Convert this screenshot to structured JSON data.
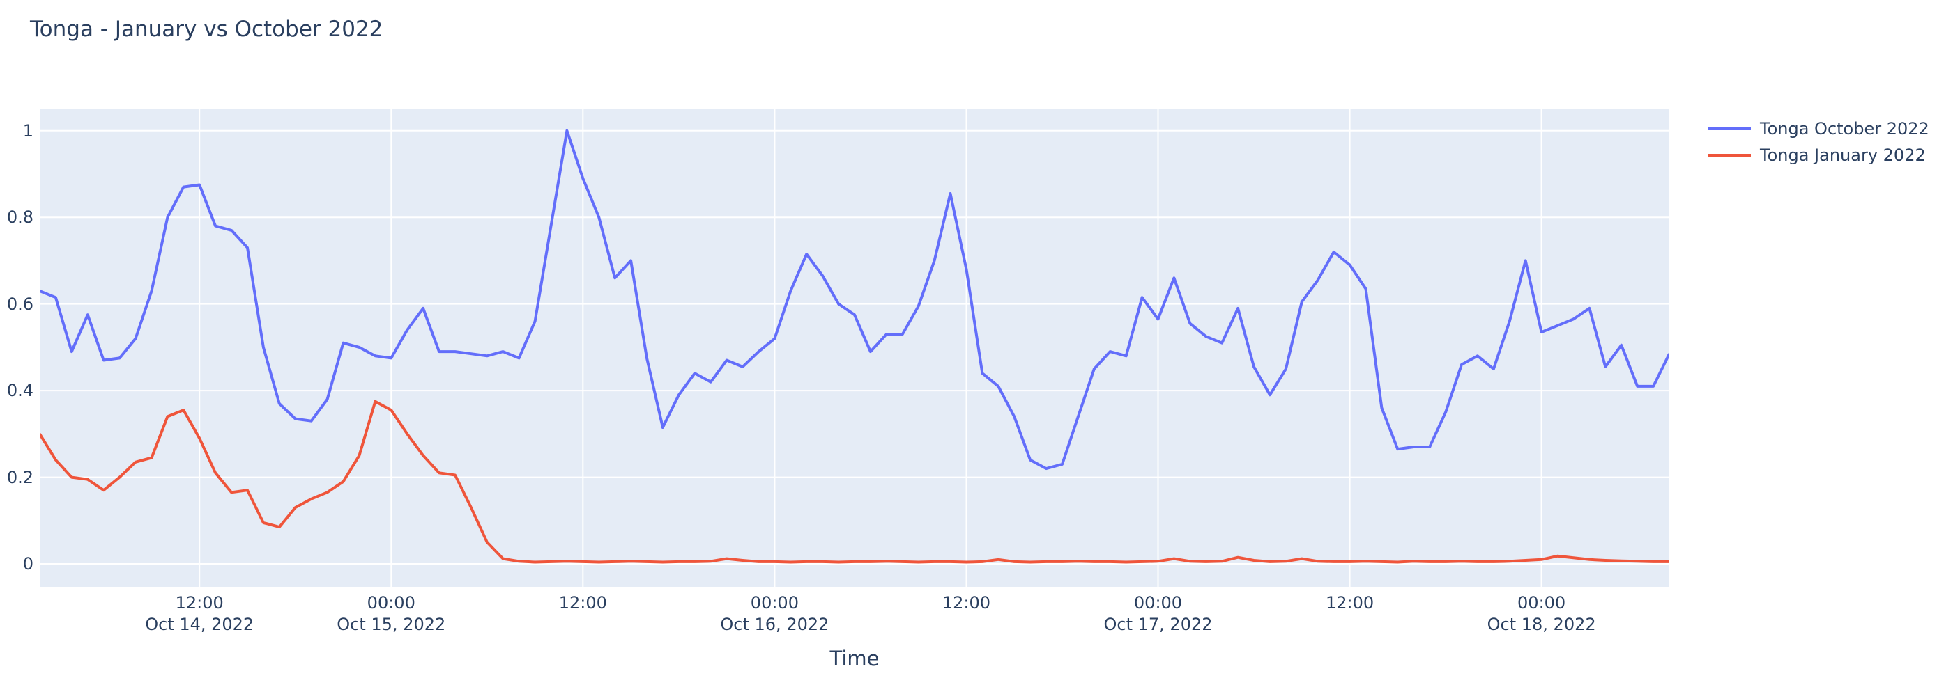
{
  "title": "Tonga - January vs October 2022",
  "xaxis_title": "Time",
  "colors": {
    "text": "#2a3f5f",
    "page_background": "#ffffff",
    "plot_background": "#e5ecf6",
    "gridline": "#ffffff",
    "series_october": "#636efa",
    "series_january": "#ef553b"
  },
  "chart_data": {
    "type": "line",
    "title": "Tonga - January vs October 2022",
    "xlabel": "Time",
    "ylabel": "",
    "grid": true,
    "legend_position": "right-top-outside",
    "x_unit": "hours since 2022-10-14 00:00",
    "x_start_hour": 2,
    "x_step_hours": 1,
    "n_points": 103,
    "x_range": [
      2,
      104
    ],
    "y_range": [
      -0.053,
      1.051
    ],
    "x_ticks": [
      {
        "t": 12,
        "line1": "12:00",
        "line2": "Oct 14, 2022"
      },
      {
        "t": 24,
        "line1": "00:00",
        "line2": "Oct 15, 2022"
      },
      {
        "t": 36,
        "line1": "12:00",
        "line2": ""
      },
      {
        "t": 48,
        "line1": "00:00",
        "line2": "Oct 16, 2022"
      },
      {
        "t": 60,
        "line1": "12:00",
        "line2": ""
      },
      {
        "t": 72,
        "line1": "00:00",
        "line2": "Oct 17, 2022"
      },
      {
        "t": 84,
        "line1": "12:00",
        "line2": ""
      },
      {
        "t": 96,
        "line1": "00:00",
        "line2": "Oct 18, 2022"
      }
    ],
    "y_ticks": [
      {
        "v": 0.0,
        "label": "0"
      },
      {
        "v": 0.2,
        "label": "0.2"
      },
      {
        "v": 0.4,
        "label": "0.4"
      },
      {
        "v": 0.6,
        "label": "0.6"
      },
      {
        "v": 0.8,
        "label": "0.8"
      },
      {
        "v": 1.0,
        "label": "1"
      }
    ],
    "series": [
      {
        "name": "Tonga October 2022",
        "slug": "tonga-october-2022",
        "color": "#636efa",
        "values": [
          0.63,
          0.615,
          0.49,
          0.575,
          0.47,
          0.475,
          0.52,
          0.63,
          0.8,
          0.87,
          0.875,
          0.78,
          0.77,
          0.73,
          0.5,
          0.37,
          0.335,
          0.33,
          0.38,
          0.51,
          0.5,
          0.48,
          0.475,
          0.54,
          0.59,
          0.49,
          0.49,
          0.485,
          0.48,
          0.49,
          0.475,
          0.56,
          0.78,
          1.0,
          0.89,
          0.8,
          0.66,
          0.7,
          0.475,
          0.315,
          0.39,
          0.44,
          0.42,
          0.47,
          0.455,
          0.49,
          0.52,
          0.63,
          0.715,
          0.665,
          0.6,
          0.575,
          0.49,
          0.53,
          0.53,
          0.595,
          0.7,
          0.855,
          0.68,
          0.44,
          0.41,
          0.34,
          0.24,
          0.22,
          0.23,
          0.34,
          0.45,
          0.49,
          0.48,
          0.615,
          0.565,
          0.66,
          0.555,
          0.525,
          0.51,
          0.59,
          0.455,
          0.39,
          0.45,
          0.605,
          0.655,
          0.72,
          0.69,
          0.635,
          0.36,
          0.265,
          0.27,
          0.27,
          0.35,
          0.46,
          0.48,
          0.45,
          0.56,
          0.7,
          0.535,
          0.55,
          0.565,
          0.59,
          0.455,
          0.505,
          0.41,
          0.41,
          0.485
        ]
      },
      {
        "name": "Tonga January 2022",
        "slug": "tonga-january-2022",
        "color": "#ef553b",
        "values": [
          0.3,
          0.24,
          0.2,
          0.195,
          0.17,
          0.2,
          0.235,
          0.245,
          0.34,
          0.355,
          0.29,
          0.21,
          0.165,
          0.17,
          0.095,
          0.085,
          0.13,
          0.15,
          0.165,
          0.19,
          0.25,
          0.375,
          0.355,
          0.3,
          0.25,
          0.21,
          0.205,
          0.13,
          0.05,
          0.012,
          0.006,
          0.004,
          0.005,
          0.006,
          0.005,
          0.004,
          0.005,
          0.006,
          0.005,
          0.004,
          0.005,
          0.005,
          0.006,
          0.012,
          0.008,
          0.005,
          0.005,
          0.004,
          0.005,
          0.005,
          0.004,
          0.005,
          0.005,
          0.006,
          0.005,
          0.004,
          0.005,
          0.005,
          0.004,
          0.005,
          0.01,
          0.005,
          0.004,
          0.005,
          0.005,
          0.006,
          0.005,
          0.005,
          0.004,
          0.005,
          0.006,
          0.012,
          0.006,
          0.005,
          0.006,
          0.015,
          0.008,
          0.005,
          0.006,
          0.012,
          0.006,
          0.005,
          0.005,
          0.006,
          0.005,
          0.004,
          0.006,
          0.005,
          0.005,
          0.006,
          0.005,
          0.005,
          0.006,
          0.008,
          0.01,
          0.018,
          0.014,
          0.01,
          0.008,
          0.007,
          0.006,
          0.005,
          0.005
        ]
      }
    ]
  }
}
